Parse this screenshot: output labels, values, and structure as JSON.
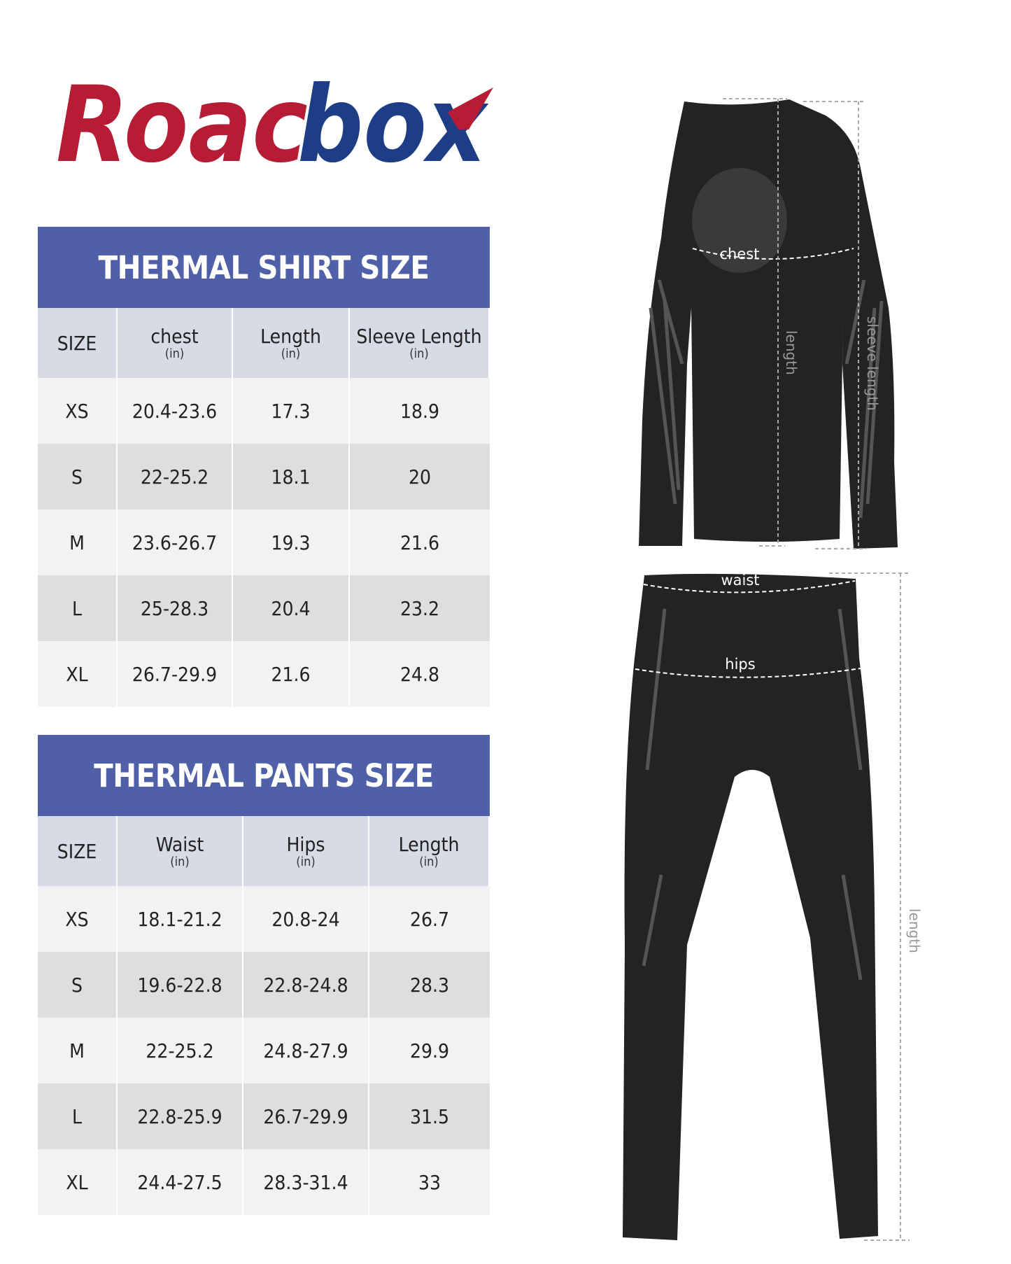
{
  "brand": {
    "logo_text": "Roadbox",
    "red": "#b71c35",
    "blue": "#1d3d87"
  },
  "shirt_table": {
    "title": "THERMAL SHIRT SIZE",
    "columns": [
      {
        "label": "SIZE",
        "unit": ""
      },
      {
        "label": "chest",
        "unit": "(in)"
      },
      {
        "label": "Length",
        "unit": "(in)"
      },
      {
        "label": "Sleeve Length",
        "unit": "(in)"
      }
    ],
    "rows": [
      [
        "XS",
        "20.4-23.6",
        "17.3",
        "18.9"
      ],
      [
        "S",
        "22-25.2",
        "18.1",
        "20"
      ],
      [
        "M",
        "23.6-26.7",
        "19.3",
        "21.6"
      ],
      [
        "L",
        "25-28.3",
        "20.4",
        "23.2"
      ],
      [
        "XL",
        "26.7-29.9",
        "21.6",
        "24.8"
      ]
    ]
  },
  "pants_table": {
    "title": "THERMAL PANTS SIZE",
    "columns": [
      {
        "label": "SIZE",
        "unit": ""
      },
      {
        "label": "Waist",
        "unit": "(in)"
      },
      {
        "label": "Hips",
        "unit": "(in)"
      },
      {
        "label": "Length",
        "unit": "(in)"
      }
    ],
    "rows": [
      [
        "XS",
        "18.1-21.2",
        "20.8-24",
        "26.7"
      ],
      [
        "S",
        "19.6-22.8",
        "22.8-24.8",
        "28.3"
      ],
      [
        "M",
        "22-25.2",
        "24.8-27.9",
        "29.9"
      ],
      [
        "L",
        "22.8-25.9",
        "26.7-29.9",
        "31.5"
      ],
      [
        "XL",
        "24.4-27.5",
        "28.3-31.4",
        "33"
      ]
    ]
  },
  "shirt_labels": {
    "chest": "chest",
    "length": "length",
    "sleeve": "sleeve length"
  },
  "pants_labels": {
    "waist": "waist",
    "hips": "hips",
    "length": "length"
  },
  "colors": {
    "header": "#4f60a9",
    "subheader": "#d8dbe6",
    "row_light": "#f2f2f2",
    "row_dark": "#dedede"
  }
}
